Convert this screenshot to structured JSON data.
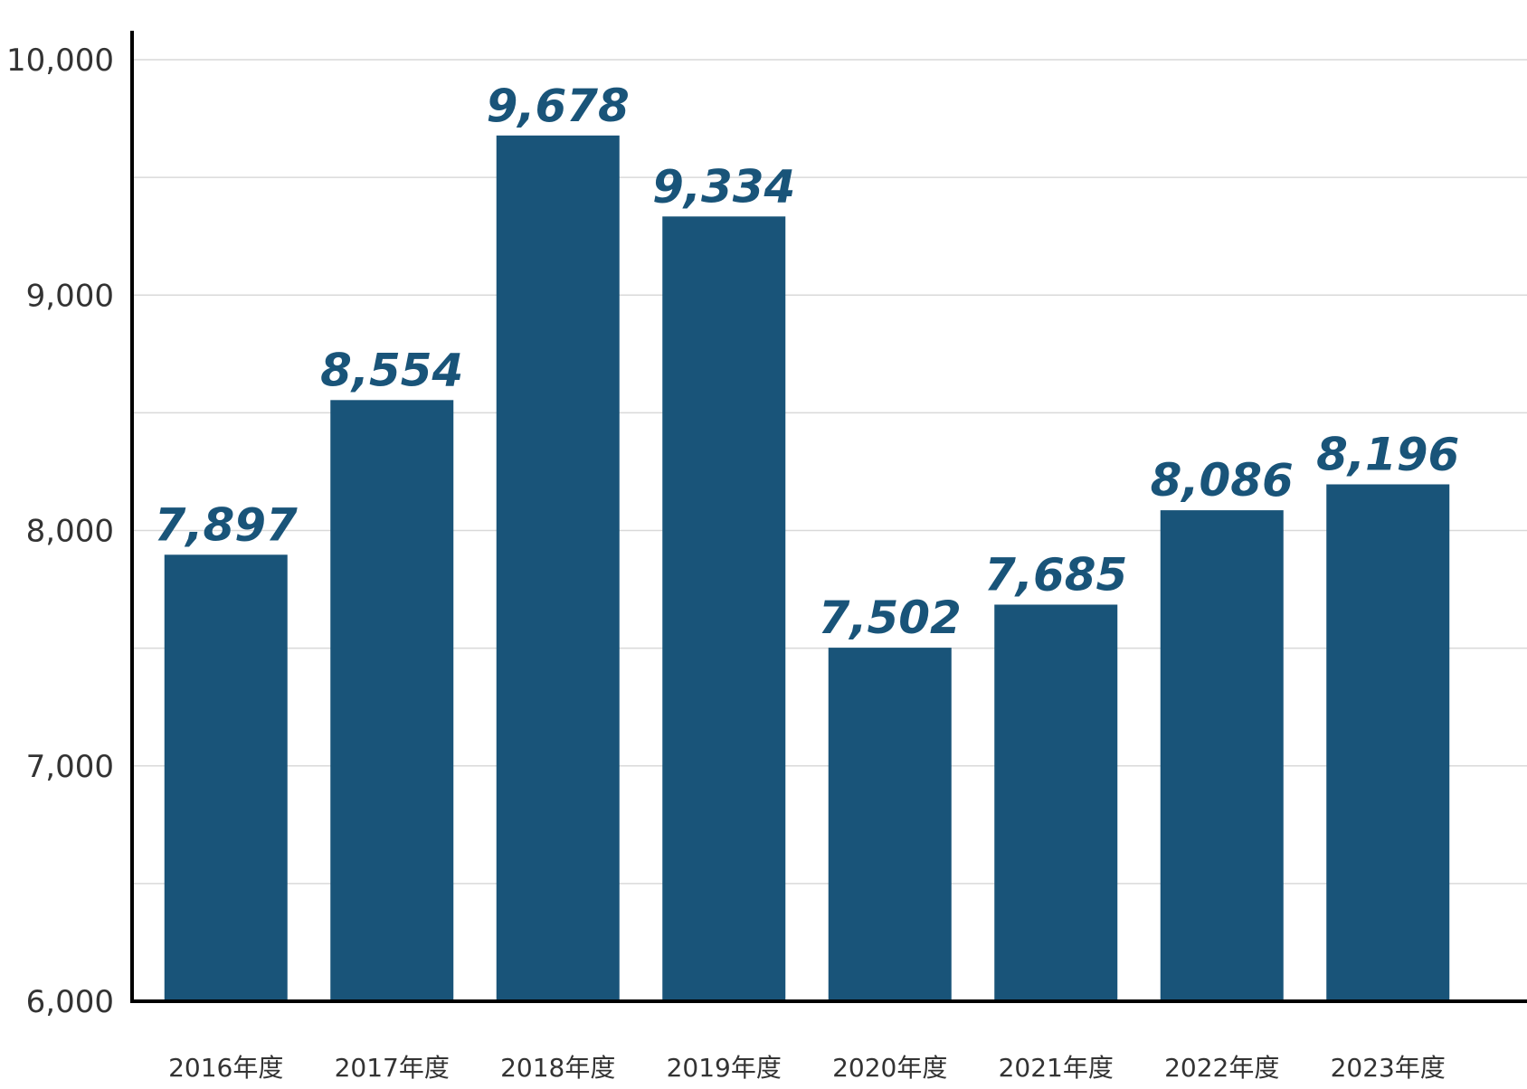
{
  "chart_data": {
    "type": "bar",
    "categories": [
      "2016年度",
      "2017年度",
      "2018年度",
      "2019年度",
      "2020年度",
      "2021年度",
      "2022年度",
      "2023年度"
    ],
    "values": [
      7897,
      8554,
      9678,
      9334,
      7502,
      7685,
      8086,
      8196
    ],
    "data_labels": [
      "7,897",
      "8,554",
      "9,678",
      "9,334",
      "7,502",
      "7,685",
      "8,086",
      "8,196"
    ],
    "title": "",
    "xlabel": "",
    "ylabel": "",
    "ylim": [
      6000,
      10000
    ],
    "yticks": [
      6000,
      7000,
      8000,
      9000,
      10000
    ],
    "ytick_labels": [
      "6,000",
      "7,000",
      "8,000",
      "9,000",
      "10,000"
    ],
    "minor_gridlines": [
      6500,
      7500,
      8500,
      9500
    ],
    "grid": true,
    "legend": "none",
    "colors": {
      "bar": "#195479",
      "data_label": "#195479",
      "grid": "#d9d9d9",
      "axis": "#000000"
    }
  }
}
